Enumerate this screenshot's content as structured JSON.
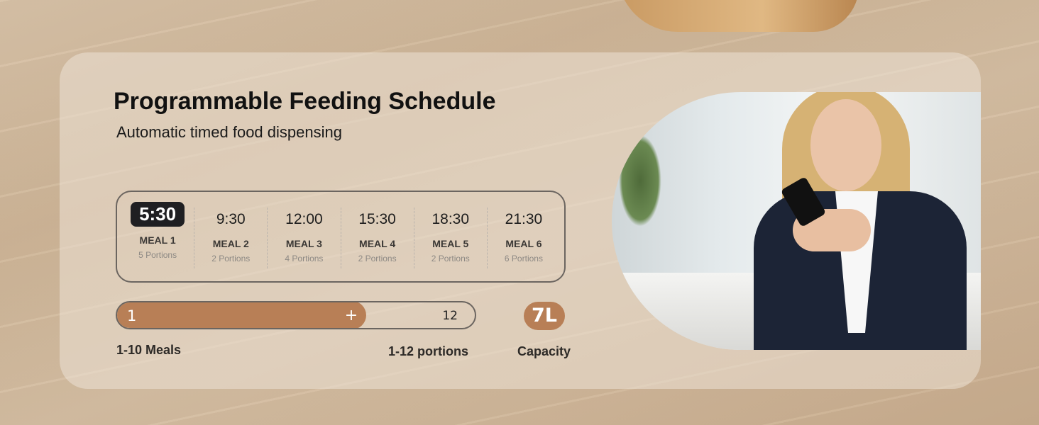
{
  "header": {
    "title": "Programmable Feeding Schedule",
    "subtitle": "Automatic timed food dispensing"
  },
  "schedule": [
    {
      "time": "5:30",
      "label": "MEAL 1",
      "portions": "5 Portions",
      "active": true
    },
    {
      "time": "9:30",
      "label": "MEAL 2",
      "portions": "2 Portions"
    },
    {
      "time": "12:00",
      "label": "MEAL 3",
      "portions": "4 Portions"
    },
    {
      "time": "15:30",
      "label": "MEAL 4",
      "portions": "2 Portions"
    },
    {
      "time": "18:30",
      "label": "MEAL 5",
      "portions": "2 Portions"
    },
    {
      "time": "21:30",
      "label": "MEAL 6",
      "portions": "6 Portions"
    }
  ],
  "portion_bar": {
    "min": "1",
    "max": "12",
    "plus": "+",
    "fill_percent": 70,
    "meals_label": "1-10 Meals",
    "portions_label": "1-12 portions"
  },
  "capacity": {
    "value": "7L",
    "label": "Capacity"
  },
  "colors": {
    "accent": "#b87f56",
    "active_time_bg": "#1f1f22",
    "border": "#6b6560"
  }
}
